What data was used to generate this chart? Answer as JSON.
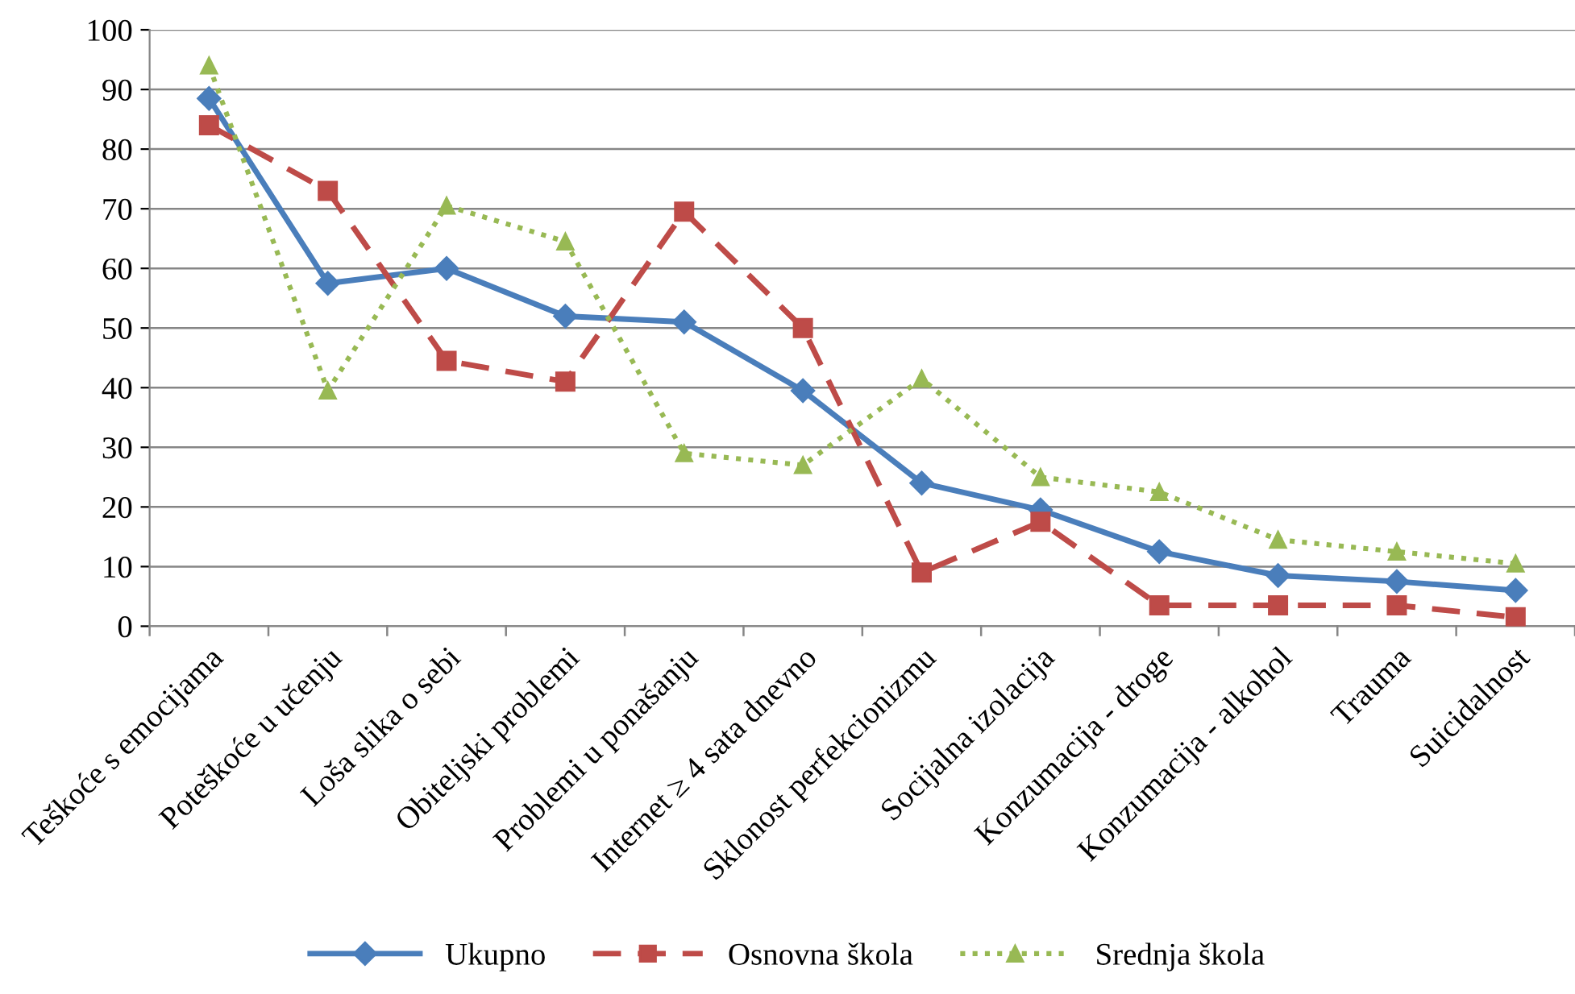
{
  "chart_data": {
    "type": "line",
    "categories": [
      "Teškoće s emocijama",
      "Poteškoće u učenju",
      "Loša slika o sebi",
      "Obiteljski problemi",
      "Problemi u ponašanju",
      "Internet ≥ 4 sata dnevno",
      "Sklonost perfekcionizmu",
      "Socijalna izolacija",
      "Konzumacija - droge",
      "Konzumacija - alkohol",
      "Trauma",
      "Suicidalnost"
    ],
    "series": [
      {
        "name": "Ukupno",
        "color": "#4a7ebb",
        "marker": "diamond",
        "line_style": "solid",
        "values": [
          88.5,
          57.5,
          60,
          52,
          51,
          39.5,
          24,
          19.5,
          12.5,
          8.5,
          7.5,
          6
        ]
      },
      {
        "name": "Osnovna škola",
        "color": "#be4b48",
        "marker": "square",
        "line_style": "dashed",
        "values": [
          84,
          73,
          44.5,
          41,
          69.5,
          50,
          9,
          17.5,
          3.5,
          3.5,
          3.5,
          1.5
        ]
      },
      {
        "name": "Srednja škola",
        "color": "#98b954",
        "marker": "triangle",
        "line_style": "dotted",
        "values": [
          94,
          39.5,
          70.5,
          64.5,
          29,
          27,
          41.5,
          25,
          22.5,
          14.5,
          12.5,
          10.5
        ]
      }
    ],
    "ylim": [
      0,
      100
    ],
    "yticks": [
      0,
      10,
      20,
      30,
      40,
      50,
      60,
      70,
      80,
      90,
      100
    ],
    "grid": "y",
    "legend": "bottom"
  }
}
